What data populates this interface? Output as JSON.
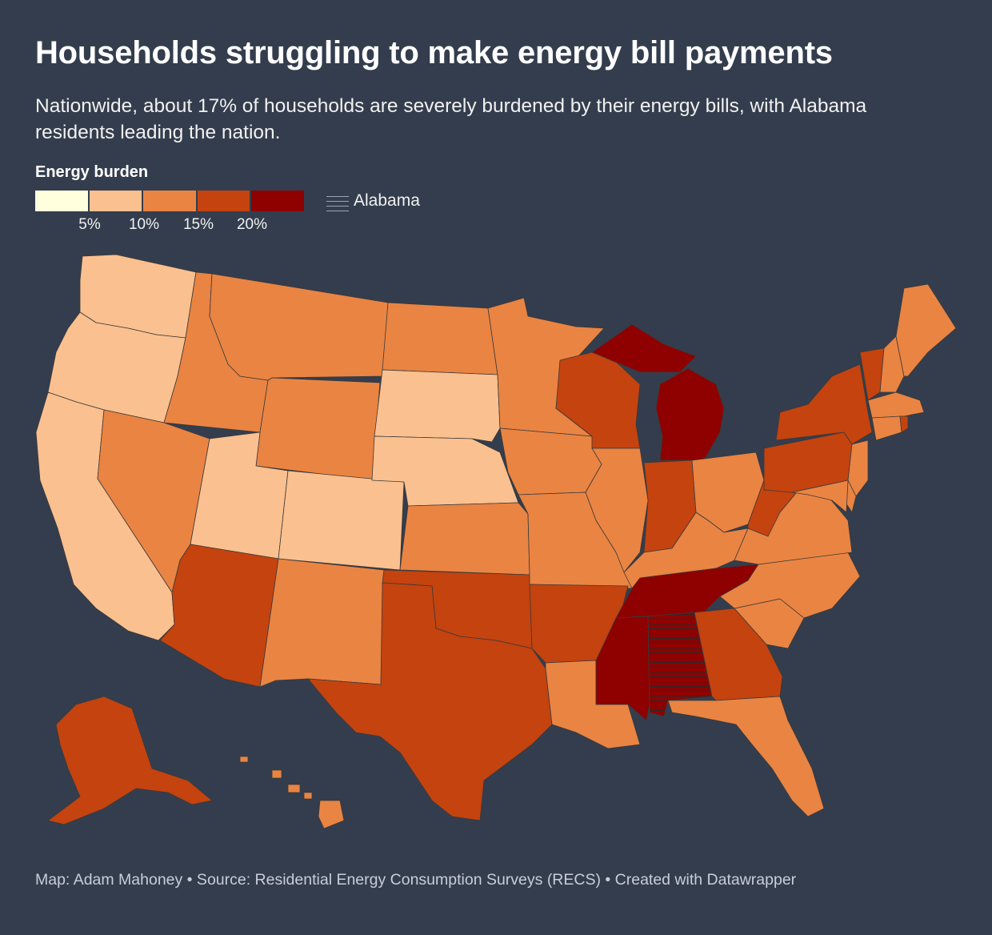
{
  "header": {
    "title": "Households struggling to make energy bill payments",
    "subtitle": "Nationwide, about 17% of households are severely burdened by their energy bills, with Alabama residents leading the nation."
  },
  "legend": {
    "title": "Energy burden",
    "swatches": [
      "#fffedd",
      "#fbc08f",
      "#ea8443",
      "#c4430f",
      "#8f0000"
    ],
    "ticks": [
      "5%",
      "10%",
      "15%",
      "20%"
    ],
    "pattern_label": "Alabama"
  },
  "colors": {
    "background": "#333d4d",
    "lt10": "#fbc08f",
    "10to15": "#ea8443",
    "15to20": "#c4430f",
    "gt20": "#8f0000"
  },
  "map_data": {
    "highlight_pattern_state": "AL",
    "state_categories": {
      "WA": "5-10%",
      "OR": "5-10%",
      "CA": "5-10%",
      "UT": "5-10%",
      "CO": "5-10%",
      "SD": "5-10%",
      "NE": "5-10%",
      "ID": "10-15%",
      "MT": "10-15%",
      "WY": "10-15%",
      "NV": "10-15%",
      "ND": "10-15%",
      "MN": "10-15%",
      "IA": "10-15%",
      "KS": "10-15%",
      "MO": "10-15%",
      "IL": "10-15%",
      "NM": "10-15%",
      "LA": "10-15%",
      "FL": "10-15%",
      "SC": "10-15%",
      "NC": "10-15%",
      "VA": "10-15%",
      "KY": "10-15%",
      "OH": "10-15%",
      "MD": "10-15%",
      "DE": "10-15%",
      "NJ": "10-15%",
      "CT": "10-15%",
      "MA": "10-15%",
      "NH": "10-15%",
      "ME": "10-15%",
      "HI": "10-15%",
      "AZ": "15-20%",
      "TX": "15-20%",
      "OK": "15-20%",
      "AR": "15-20%",
      "GA": "15-20%",
      "IN": "15-20%",
      "WI": "15-20%",
      "WV": "15-20%",
      "PA": "15-20%",
      "NY": "15-20%",
      "VT": "15-20%",
      "RI": "15-20%",
      "AK": "15-20%",
      "MI": ">20%",
      "TN": ">20%",
      "MS": ">20%",
      "AL": ">20%"
    }
  },
  "footer": {
    "credit": "Map: Adam Mahoney • Source: Residential Energy Consumption Surveys (RECS) • Created with Datawrapper"
  }
}
